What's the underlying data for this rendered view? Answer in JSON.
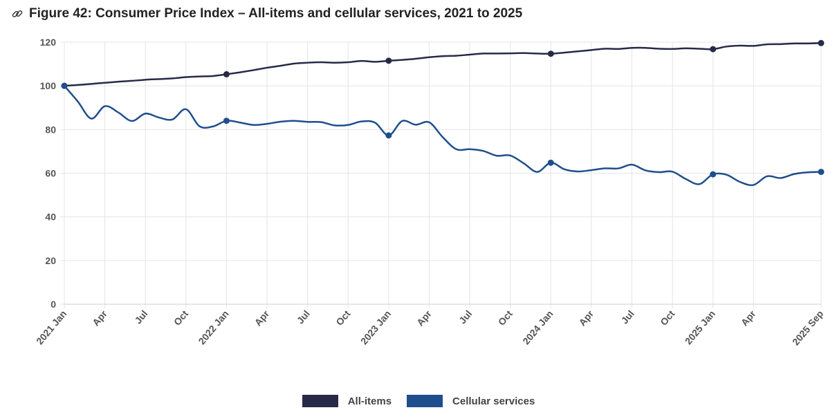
{
  "title": "Figure 42: Consumer Price Index – All-items and cellular services, 2021 to 2025",
  "title_icon": "link-icon",
  "chart_data": {
    "type": "line",
    "title": "Figure 42: Consumer Price Index – All-items and cellular services, 2021 to 2025",
    "xlabel": "",
    "ylabel": "",
    "ylim": [
      0,
      120
    ],
    "yticks": [
      0,
      20,
      40,
      60,
      80,
      100,
      120
    ],
    "grid": true,
    "legend_position": "bottom",
    "x": [
      "2021-01",
      "2021-02",
      "2021-03",
      "2021-04",
      "2021-05",
      "2021-06",
      "2021-07",
      "2021-08",
      "2021-09",
      "2021-10",
      "2021-11",
      "2021-12",
      "2022-01",
      "2022-02",
      "2022-03",
      "2022-04",
      "2022-05",
      "2022-06",
      "2022-07",
      "2022-08",
      "2022-09",
      "2022-10",
      "2022-11",
      "2022-12",
      "2023-01",
      "2023-02",
      "2023-03",
      "2023-04",
      "2023-05",
      "2023-06",
      "2023-07",
      "2023-08",
      "2023-09",
      "2023-10",
      "2023-11",
      "2023-12",
      "2024-01",
      "2024-02",
      "2024-03",
      "2024-04",
      "2024-05",
      "2024-06",
      "2024-07",
      "2024-08",
      "2024-09",
      "2024-10",
      "2024-11",
      "2024-12",
      "2025-01",
      "2025-02",
      "2025-03",
      "2025-04",
      "2025-05",
      "2025-06",
      "2025-07",
      "2025-08",
      "2025-09"
    ],
    "xticks": [
      {
        "x": "2021-01",
        "label": "2021 Jan"
      },
      {
        "x": "2021-04",
        "label": "Apr"
      },
      {
        "x": "2021-07",
        "label": "Jul"
      },
      {
        "x": "2021-10",
        "label": "Oct"
      },
      {
        "x": "2022-01",
        "label": "2022 Jan"
      },
      {
        "x": "2022-04",
        "label": "Apr"
      },
      {
        "x": "2022-07",
        "label": "Jul"
      },
      {
        "x": "2022-10",
        "label": "Oct"
      },
      {
        "x": "2023-01",
        "label": "2023 Jan"
      },
      {
        "x": "2023-04",
        "label": "Apr"
      },
      {
        "x": "2023-07",
        "label": "Jul"
      },
      {
        "x": "2023-10",
        "label": "Oct"
      },
      {
        "x": "2024-01",
        "label": "2024 Jan"
      },
      {
        "x": "2024-04",
        "label": "Apr"
      },
      {
        "x": "2024-07",
        "label": "Jul"
      },
      {
        "x": "2024-10",
        "label": "Oct"
      },
      {
        "x": "2025-01",
        "label": "2025 Jan"
      },
      {
        "x": "2025-04",
        "label": "Apr"
      },
      {
        "x": "2025-09",
        "label": "2025 Sep"
      }
    ],
    "markers_at": [
      "2021-01",
      "2022-01",
      "2023-01",
      "2024-01",
      "2025-01",
      "2025-09"
    ],
    "series": [
      {
        "name": "All-items",
        "color": "#262a48",
        "values": [
          100,
          100.4,
          100.9,
          101.4,
          101.9,
          102.3,
          102.8,
          103.1,
          103.4,
          104.0,
          104.3,
          104.5,
          105.3,
          106.2,
          107.2,
          108.3,
          109.2,
          110.2,
          110.6,
          110.8,
          110.6,
          110.8,
          111.4,
          111.0,
          111.5,
          111.9,
          112.4,
          113.1,
          113.6,
          113.8,
          114.3,
          114.8,
          114.8,
          114.9,
          115.0,
          114.8,
          114.7,
          115.2,
          115.8,
          116.4,
          117.0,
          116.9,
          117.4,
          117.4,
          117.0,
          116.9,
          117.2,
          117.0,
          116.8,
          118.0,
          118.4,
          118.3,
          119.0,
          119.1,
          119.4,
          119.4,
          119.6
        ]
      },
      {
        "name": "Cellular services",
        "color": "#1f4e8c",
        "values": [
          100,
          92.8,
          85.0,
          90.7,
          87.8,
          83.9,
          87.3,
          85.5,
          84.6,
          89.3,
          81.5,
          81.4,
          84.0,
          83.2,
          82.1,
          82.6,
          83.6,
          84.0,
          83.5,
          83.4,
          81.9,
          82.1,
          83.7,
          83.1,
          77.3,
          83.9,
          82.2,
          83.3,
          76.5,
          71.0,
          71.0,
          70.2,
          68.0,
          68.1,
          64.5,
          60.6,
          64.8,
          61.8,
          60.8,
          61.4,
          62.2,
          62.2,
          63.9,
          61.3,
          60.5,
          60.7,
          57.3,
          55.0,
          59.5,
          59.3,
          56.0,
          54.6,
          58.6,
          57.8,
          59.6,
          60.4,
          60.6
        ]
      }
    ]
  }
}
